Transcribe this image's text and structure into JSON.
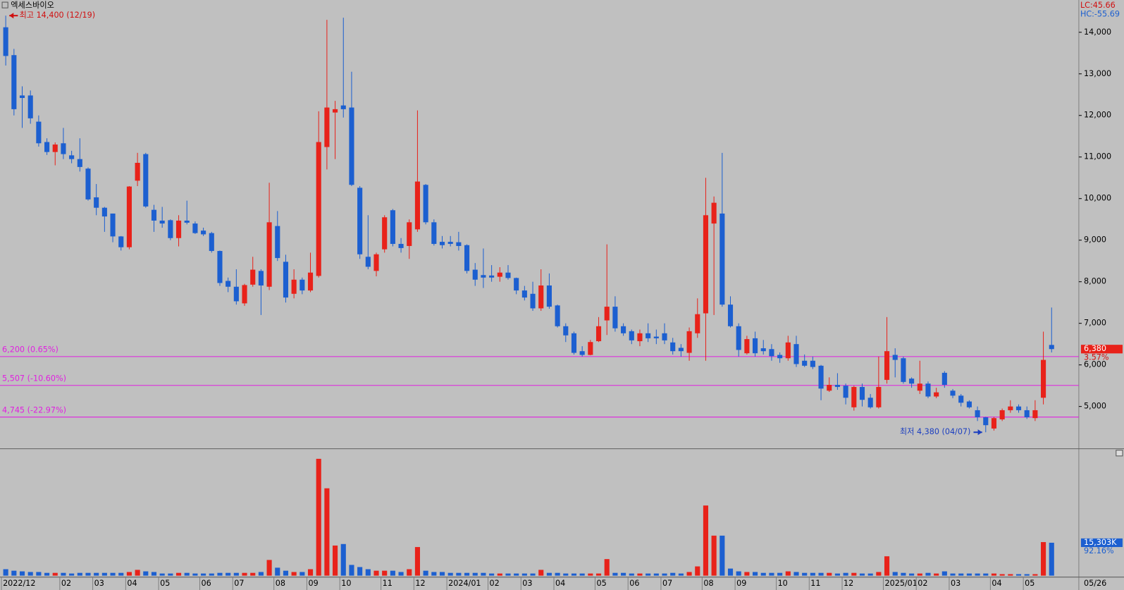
{
  "chart_data": {
    "type": "candlestick",
    "title": "엑세스바이오",
    "indicator_lc": "LC:45.66",
    "indicator_hc": "HC:-55.69",
    "up_color": "#e8221a",
    "down_color": "#1c5fd0",
    "line_color": "#e020e0",
    "ylim": [
      4000,
      14776
    ],
    "yticks": [
      {
        "value": 5000,
        "label": "5,000"
      },
      {
        "value": 6000,
        "label": "6,000"
      },
      {
        "value": 7000,
        "label": "7,000"
      },
      {
        "value": 8000,
        "label": "8,000"
      },
      {
        "value": 9000,
        "label": "9,000"
      },
      {
        "value": 10000,
        "label": "10,000"
      },
      {
        "value": 11000,
        "label": "11,000"
      },
      {
        "value": 12000,
        "label": "12,000"
      },
      {
        "value": 13000,
        "label": "13,000"
      },
      {
        "value": 14000,
        "label": "14,000"
      }
    ],
    "hlines": [
      {
        "value": 6200,
        "label": "6,200 (0.65%)"
      },
      {
        "value": 5507,
        "label": "5,507 (-10.60%)"
      },
      {
        "value": 4745,
        "label": "4,745 (-22.97%)"
      }
    ],
    "max_annotation": {
      "value": 14400,
      "label": "최고 14,400 (12/19)"
    },
    "min_annotation": {
      "value": 4380,
      "label": "최저 4,380 (04/07)"
    },
    "last_price_label": "6,380",
    "last_change_label": "3.57%",
    "volume_label": "15,303K",
    "volume_change_label": "92.16%",
    "end_date": "05/26",
    "volume_ylim": [
      0,
      58300
    ],
    "categories": [
      "2022/12",
      null,
      null,
      null,
      null,
      null,
      null,
      "02",
      null,
      null,
      null,
      "03",
      null,
      null,
      null,
      "04",
      null,
      null,
      null,
      "05",
      null,
      null,
      null,
      null,
      "06",
      null,
      null,
      null,
      "07",
      null,
      null,
      null,
      null,
      "08",
      null,
      null,
      null,
      "09",
      null,
      null,
      null,
      "10",
      null,
      null,
      null,
      null,
      "11",
      null,
      null,
      null,
      "12",
      null,
      null,
      null,
      "2024/01",
      null,
      null,
      null,
      null,
      "02",
      null,
      null,
      null,
      "03",
      null,
      null,
      null,
      "04",
      null,
      null,
      null,
      null,
      "05",
      null,
      null,
      null,
      "06",
      null,
      null,
      null,
      "07",
      null,
      null,
      null,
      null,
      "08",
      null,
      null,
      null,
      "09",
      null,
      null,
      null,
      null,
      "10",
      null,
      null,
      null,
      "11",
      null,
      null,
      null,
      "12",
      null,
      null,
      null,
      null,
      "2025/01",
      null,
      null,
      null,
      "02",
      null,
      null,
      null,
      "03",
      null,
      null,
      null,
      null,
      "04",
      null,
      null,
      null,
      "05",
      null,
      null,
      null
    ],
    "candles": [
      [
        14120,
        14400,
        13200,
        13430
      ],
      [
        13450,
        13600,
        12000,
        12150
      ],
      [
        12480,
        12700,
        11700,
        12420
      ],
      [
        12480,
        12600,
        11800,
        11930
      ],
      [
        11850,
        12000,
        11250,
        11330
      ],
      [
        11360,
        11450,
        11050,
        11120
      ],
      [
        11120,
        11350,
        10800,
        11300
      ],
      [
        11330,
        11700,
        10950,
        11070
      ],
      [
        11040,
        11150,
        10850,
        10950
      ],
      [
        10950,
        11450,
        10650,
        10760
      ],
      [
        10720,
        10750,
        9950,
        9980
      ],
      [
        10030,
        10350,
        9600,
        9780
      ],
      [
        9780,
        9800,
        9200,
        9570
      ],
      [
        9640,
        9640,
        8950,
        9090
      ],
      [
        9090,
        9100,
        8750,
        8830
      ],
      [
        8830,
        10300,
        8780,
        10290
      ],
      [
        10430,
        11100,
        10300,
        10860
      ],
      [
        11070,
        11100,
        9780,
        9810
      ],
      [
        9730,
        9850,
        9200,
        9470
      ],
      [
        9470,
        9800,
        9300,
        9400
      ],
      [
        9480,
        9500,
        9000,
        9050
      ],
      [
        9050,
        9600,
        8850,
        9470
      ],
      [
        9470,
        9950,
        9380,
        9420
      ],
      [
        9400,
        9450,
        9150,
        9170
      ],
      [
        9230,
        9300,
        9100,
        9140
      ],
      [
        9170,
        9200,
        8700,
        8740
      ],
      [
        8740,
        8750,
        7900,
        7970
      ],
      [
        8020,
        8100,
        7750,
        7880
      ],
      [
        7880,
        8300,
        7450,
        7530
      ],
      [
        7480,
        7950,
        7420,
        7920
      ],
      [
        7930,
        8600,
        7880,
        8290
      ],
      [
        8260,
        8300,
        7200,
        7910
      ],
      [
        7880,
        10380,
        7800,
        9430
      ],
      [
        9340,
        9700,
        8500,
        8570
      ],
      [
        8480,
        8650,
        7500,
        7620
      ],
      [
        7710,
        8300,
        7600,
        8050
      ],
      [
        8050,
        8100,
        7700,
        7790
      ],
      [
        7790,
        8700,
        7750,
        8220
      ],
      [
        8140,
        12100,
        8100,
        11360
      ],
      [
        11240,
        14300,
        10700,
        12190
      ],
      [
        12070,
        12350,
        10950,
        12150
      ],
      [
        12240,
        14350,
        11950,
        12150
      ],
      [
        12190,
        13050,
        10300,
        10330
      ],
      [
        10260,
        10300,
        8550,
        8660
      ],
      [
        8600,
        9600,
        8300,
        8360
      ],
      [
        8260,
        8700,
        8130,
        8660
      ],
      [
        8780,
        9600,
        8700,
        9550
      ],
      [
        9720,
        9750,
        8850,
        8910
      ],
      [
        8910,
        9050,
        8700,
        8810
      ],
      [
        8860,
        9500,
        8550,
        9430
      ],
      [
        9260,
        12120,
        9200,
        10410
      ],
      [
        10330,
        10350,
        9380,
        9430
      ],
      [
        9430,
        9500,
        8870,
        8910
      ],
      [
        8960,
        9100,
        8800,
        8880
      ],
      [
        8960,
        9100,
        8850,
        8910
      ],
      [
        8950,
        9200,
        8750,
        8860
      ],
      [
        8880,
        8900,
        8200,
        8260
      ],
      [
        8290,
        8450,
        7900,
        8050
      ],
      [
        8160,
        8800,
        7850,
        8100
      ],
      [
        8150,
        8400,
        8000,
        8100
      ],
      [
        8120,
        8350,
        8000,
        8220
      ],
      [
        8220,
        8400,
        8050,
        8090
      ],
      [
        8090,
        8100,
        7700,
        7790
      ],
      [
        7790,
        7900,
        7550,
        7620
      ],
      [
        7710,
        8000,
        7300,
        7360
      ],
      [
        7360,
        8300,
        7300,
        7910
      ],
      [
        7910,
        8200,
        7350,
        7400
      ],
      [
        7430,
        7450,
        6900,
        6930
      ],
      [
        6930,
        7000,
        6550,
        6710
      ],
      [
        6760,
        6800,
        6250,
        6290
      ],
      [
        6330,
        6450,
        6200,
        6240
      ],
      [
        6240,
        6600,
        6230,
        6550
      ],
      [
        6570,
        7150,
        6550,
        6930
      ],
      [
        7070,
        8900,
        6720,
        7400
      ],
      [
        7400,
        7650,
        6800,
        6880
      ],
      [
        6930,
        7000,
        6700,
        6760
      ],
      [
        6810,
        6850,
        6500,
        6590
      ],
      [
        6570,
        6850,
        6450,
        6760
      ],
      [
        6760,
        7000,
        6550,
        6640
      ],
      [
        6680,
        6850,
        6500,
        6640
      ],
      [
        6760,
        7000,
        6500,
        6590
      ],
      [
        6540,
        6650,
        6250,
        6330
      ],
      [
        6410,
        6500,
        6200,
        6330
      ],
      [
        6290,
        6900,
        6100,
        6810
      ],
      [
        6760,
        7600,
        6650,
        7220
      ],
      [
        7240,
        10500,
        6100,
        9600
      ],
      [
        9400,
        10050,
        7200,
        9900
      ],
      [
        9640,
        11100,
        7400,
        7450
      ],
      [
        7450,
        7650,
        6900,
        6930
      ],
      [
        6930,
        7000,
        6200,
        6360
      ],
      [
        6280,
        6700,
        6250,
        6620
      ],
      [
        6640,
        6800,
        6200,
        6280
      ],
      [
        6400,
        6600,
        6250,
        6330
      ],
      [
        6380,
        6500,
        6100,
        6210
      ],
      [
        6240,
        6300,
        6050,
        6160
      ],
      [
        6160,
        6700,
        6100,
        6540
      ],
      [
        6500,
        6700,
        5950,
        6020
      ],
      [
        6100,
        6250,
        5950,
        5980
      ],
      [
        6100,
        6200,
        5900,
        5950
      ],
      [
        5980,
        6000,
        5150,
        5430
      ],
      [
        5380,
        5700,
        5350,
        5520
      ],
      [
        5520,
        5800,
        5400,
        5470
      ],
      [
        5500,
        5550,
        5050,
        5210
      ],
      [
        4980,
        5500,
        4900,
        5470
      ],
      [
        5470,
        5550,
        5000,
        5160
      ],
      [
        5210,
        5300,
        4950,
        4980
      ],
      [
        4980,
        6200,
        4950,
        5470
      ],
      [
        5640,
        7150,
        5550,
        6330
      ],
      [
        6240,
        6400,
        5700,
        6120
      ],
      [
        6160,
        6200,
        5550,
        5590
      ],
      [
        5670,
        5700,
        5450,
        5550
      ],
      [
        5380,
        6100,
        5300,
        5550
      ],
      [
        5550,
        5600,
        5200,
        5240
      ],
      [
        5240,
        5450,
        5200,
        5340
      ],
      [
        5810,
        5850,
        5450,
        5520
      ],
      [
        5380,
        5420,
        5200,
        5260
      ],
      [
        5260,
        5300,
        5000,
        5090
      ],
      [
        5120,
        5150,
        4950,
        4980
      ],
      [
        4910,
        5000,
        4650,
        4740
      ],
      [
        4740,
        4750,
        4380,
        4550
      ],
      [
        4470,
        4750,
        4420,
        4720
      ],
      [
        4690,
        4950,
        4650,
        4910
      ],
      [
        4910,
        5150,
        4850,
        5000
      ],
      [
        5000,
        5050,
        4850,
        4910
      ],
      [
        4910,
        5000,
        4700,
        4740
      ],
      [
        4720,
        5150,
        4650,
        4910
      ],
      [
        5210,
        6800,
        5050,
        6120
      ],
      [
        6480,
        7380,
        6300,
        6380
      ]
    ],
    "volume": [
      3000,
      2300,
      2000,
      1700,
      1700,
      1300,
      1300,
      1300,
      1000,
      1300,
      1300,
      1300,
      1300,
      1300,
      1300,
      1700,
      2700,
      2000,
      1700,
      1000,
      1000,
      1300,
      1300,
      1000,
      1000,
      1000,
      1300,
      1300,
      1300,
      1300,
      1300,
      1700,
      7300,
      3700,
      2300,
      1700,
      1700,
      3000,
      54300,
      40600,
      14000,
      14700,
      5000,
      4000,
      3000,
      2300,
      2300,
      2300,
      1700,
      3000,
      13300,
      2300,
      1700,
      1700,
      1300,
      1300,
      1300,
      1300,
      1300,
      1000,
      1000,
      1000,
      1000,
      1000,
      1000,
      2700,
      1300,
      1300,
      1000,
      1000,
      1000,
      1000,
      1000,
      7700,
      1300,
      1300,
      1000,
      1000,
      1000,
      1000,
      1000,
      1300,
      1000,
      1700,
      4300,
      32600,
      18600,
      18600,
      3300,
      2000,
      1700,
      1700,
      1300,
      1300,
      1300,
      2000,
      1700,
      1300,
      1300,
      1300,
      1300,
      1000,
      1300,
      1300,
      1000,
      1000,
      1700,
      9000,
      1700,
      1300,
      1000,
      1000,
      1300,
      1000,
      2000,
      1000,
      1000,
      1000,
      1000,
      1000,
      1000,
      700,
      700,
      700,
      700,
      700,
      15600,
      15303
    ]
  }
}
